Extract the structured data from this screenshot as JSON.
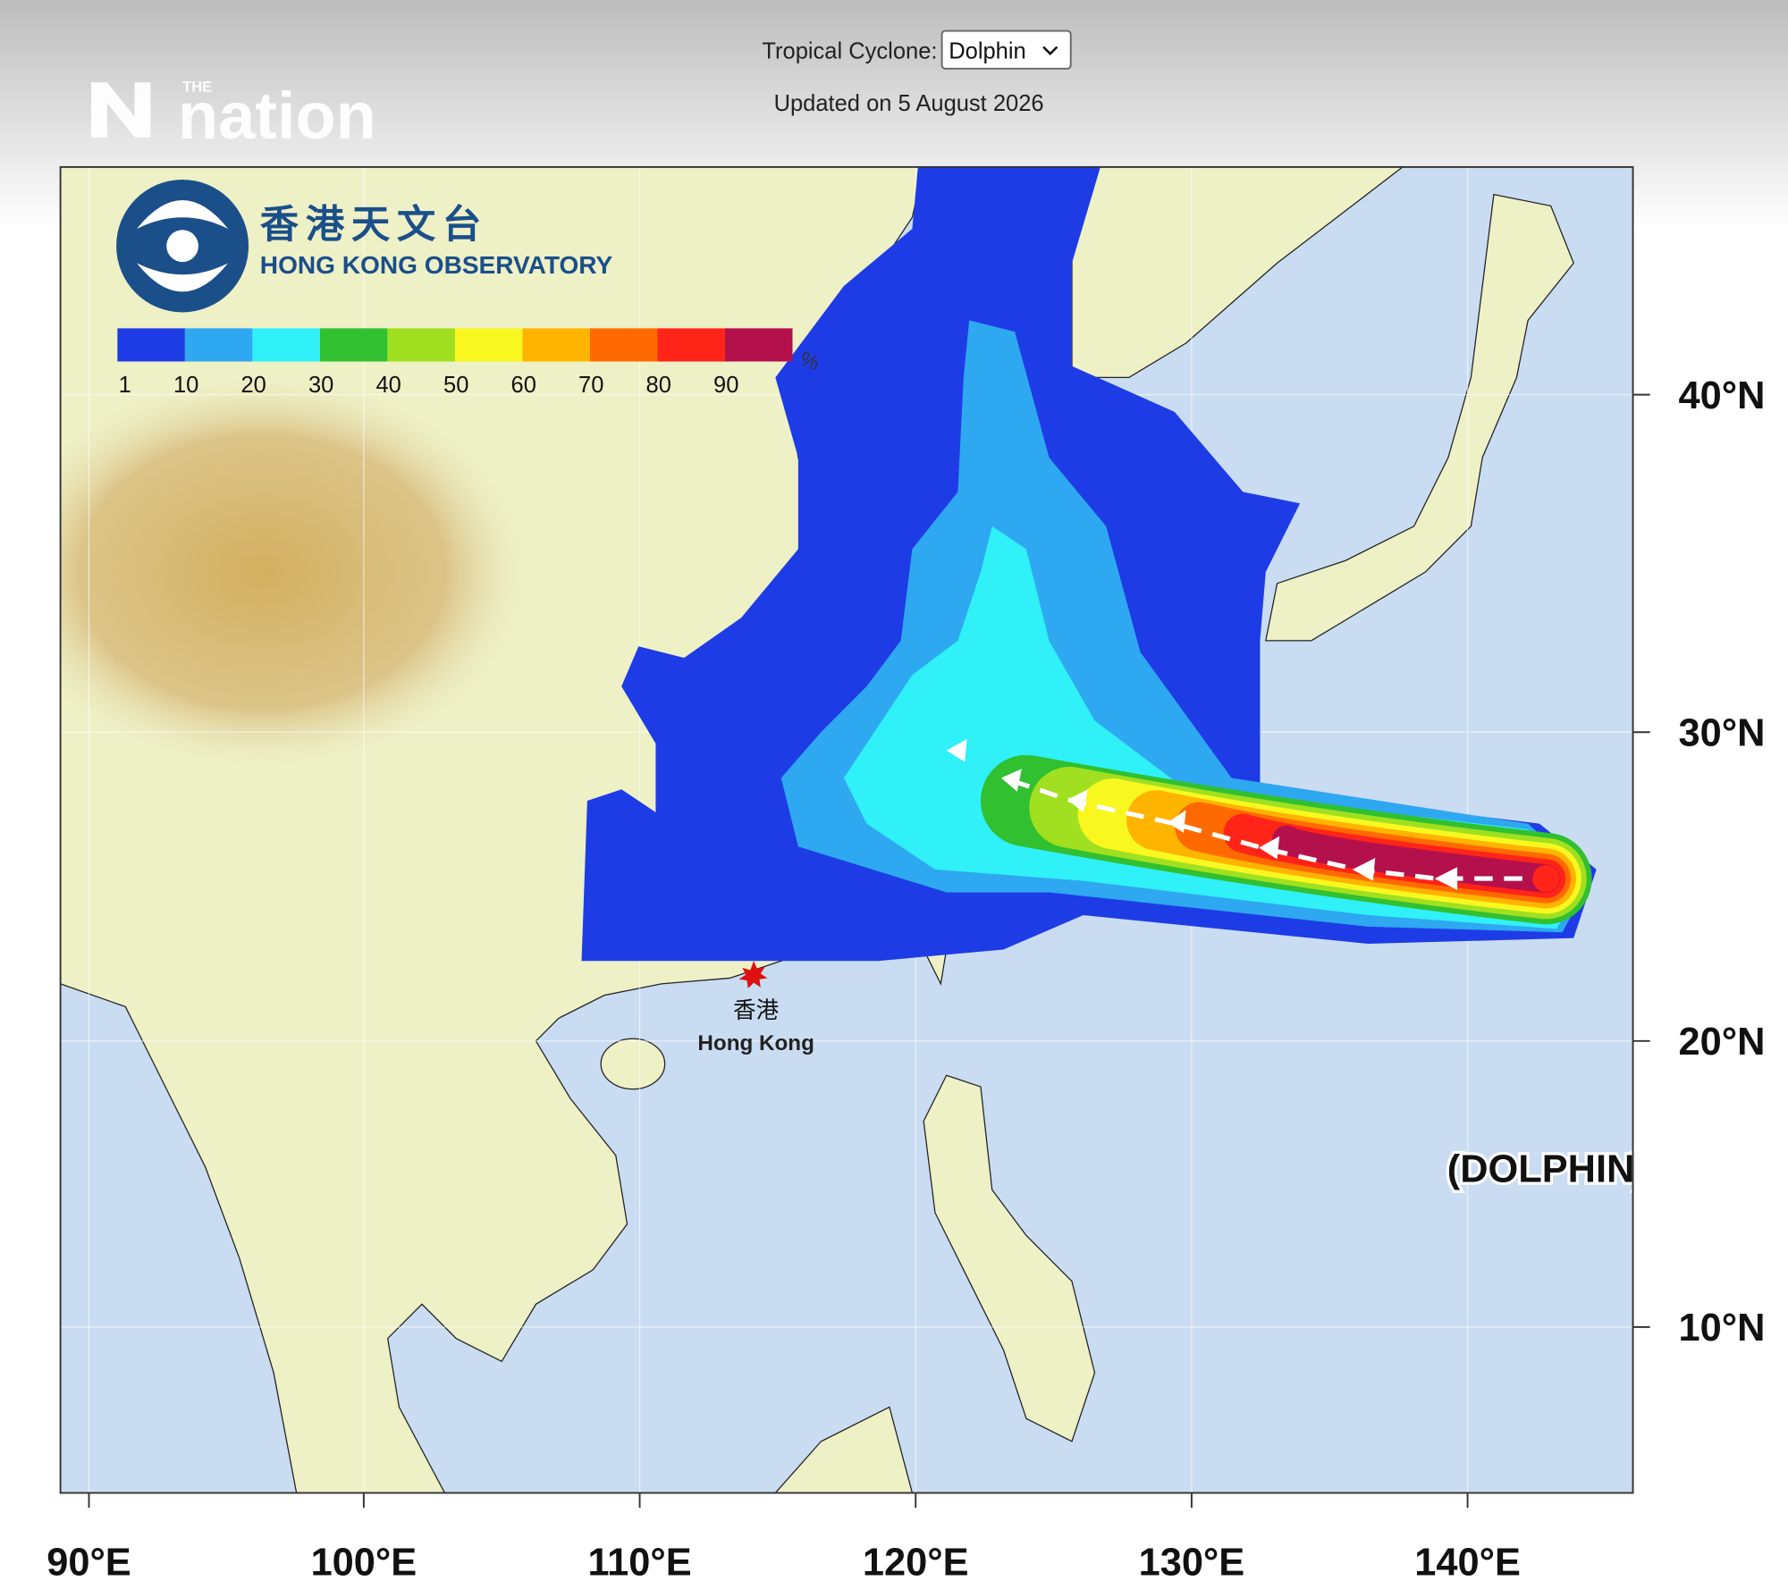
{
  "header": {
    "cyclone_label": "Tropical Cyclone:",
    "cyclone_select": "Dolphin",
    "updated": "Updated on 5 August 2026"
  },
  "watermark": {
    "small": "THE",
    "brand": "nation"
  },
  "map": {
    "observatory_name_zh": "香港天文台",
    "observatory_name_en": "HONG KONG OBSERVATORY",
    "legend": {
      "labels": [
        1,
        10,
        20,
        30,
        40,
        50,
        60,
        70,
        80,
        90
      ],
      "unit": "%",
      "colors": [
        "#1e3ce6",
        "#2ea8f0",
        "#30f0f8",
        "#30c030",
        "#a0e020",
        "#f8f820",
        "#ffb400",
        "#ff6a00",
        "#ff2418",
        "#b4104c"
      ]
    },
    "city": {
      "name_zh": "香港",
      "name_en": "Hong Kong"
    },
    "lat_labels": [
      "40°N",
      "30°N",
      "20°N",
      "10°N"
    ],
    "lon_labels": [
      "90°E",
      "100°E",
      "110°E",
      "120°E",
      "130°E",
      "140°E"
    ],
    "storm_label": "(DOLPHIN)\""
  }
}
